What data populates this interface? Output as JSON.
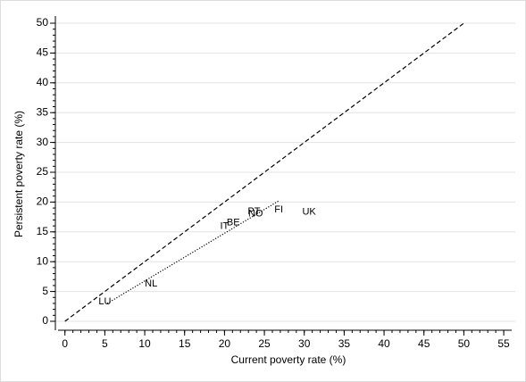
{
  "chart_data": {
    "type": "scatter",
    "x_label": "Current poverty rate (%)",
    "y_label": "Persistent poverty rate (%)",
    "labels": [
      "LU",
      "NL",
      "IT",
      "BE",
      "PT",
      "NO",
      "FI",
      "UK"
    ],
    "x": [
      5.0,
      10.8,
      20.0,
      21.1,
      23.7,
      23.9,
      26.8,
      30.6
    ],
    "y": [
      3.3,
      6.3,
      15.9,
      16.5,
      18.4,
      18.0,
      18.7,
      18.3
    ],
    "lines": [
      {
        "x": [
          0,
          50
        ],
        "y": [
          0,
          50
        ],
        "dash": "dashed"
      },
      {
        "x": [
          5.3,
          26.8
        ],
        "y": [
          3.0,
          20.2
        ],
        "dash": "dotted"
      }
    ],
    "xlim": [
      -1.2,
      56
    ],
    "ylim": [
      -1.5,
      51.2
    ],
    "xticks": [
      0,
      5,
      10,
      15,
      20,
      25,
      30,
      35,
      40,
      45,
      50,
      55
    ],
    "yticks": [
      0,
      5,
      10,
      15,
      20,
      25,
      30,
      35,
      40,
      45,
      50
    ],
    "xminorticks": [
      0,
      1,
      2,
      3,
      4,
      5,
      6,
      7,
      8,
      9,
      10,
      11,
      12,
      13,
      14,
      15,
      16,
      17,
      18,
      19,
      20,
      21,
      22,
      23,
      24,
      25,
      26,
      27,
      28,
      29,
      30,
      31,
      32,
      33,
      34,
      35,
      36,
      37,
      38,
      39,
      40,
      41,
      42,
      43,
      44,
      45,
      46,
      47,
      48,
      49,
      50,
      51,
      52,
      53,
      54,
      55
    ],
    "yminorticks": [
      0,
      1,
      2,
      3,
      4,
      5,
      6,
      7,
      8,
      9,
      10,
      11,
      12,
      13,
      14,
      15,
      16,
      17,
      18,
      19,
      20,
      21,
      22,
      23,
      24,
      25,
      26,
      27,
      28,
      29,
      30,
      31,
      32,
      33,
      34,
      35,
      36,
      37,
      38,
      39,
      40,
      41,
      42,
      43,
      44,
      45,
      46,
      47,
      48,
      49,
      50
    ],
    "grid": true
  }
}
